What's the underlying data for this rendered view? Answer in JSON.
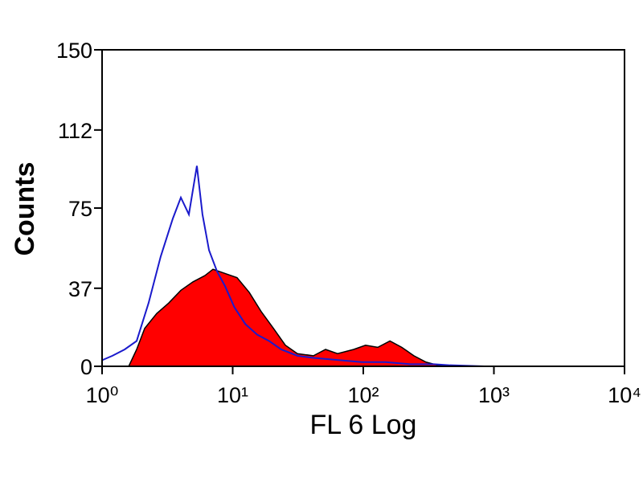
{
  "chart_data": {
    "type": "histogram-overlay",
    "xlabel": "FL 6 Log",
    "ylabel": "Counts",
    "xscale": "log",
    "xlim": [
      1,
      10000
    ],
    "ylim": [
      0,
      150
    ],
    "xticks": [
      {
        "value": 1,
        "label": "10⁰"
      },
      {
        "value": 10,
        "label": "10¹"
      },
      {
        "value": 100,
        "label": "10²"
      },
      {
        "value": 1000,
        "label": "10³"
      },
      {
        "value": 10000,
        "label": "10⁴"
      }
    ],
    "yticks": [
      0,
      37,
      75,
      112,
      150
    ],
    "series": [
      {
        "style": "area",
        "color": "#ff0000",
        "edge": "#000000",
        "x": [
          1.6,
          1.84,
          2.12,
          2.62,
          3.24,
          4.01,
          4.96,
          6.13,
          7.07,
          8.74,
          10.8,
          13.4,
          16.5,
          20.5,
          25.3,
          31.3,
          41.5,
          51.4,
          63.5,
          84.4,
          104,
          129,
          160,
          197,
          244,
          302,
          373,
          462
        ],
        "values": [
          0,
          8,
          18,
          25,
          30,
          36,
          40,
          43,
          46,
          44,
          42,
          35,
          26,
          18,
          10,
          6,
          5,
          8,
          6,
          8,
          10,
          9,
          12,
          9,
          5,
          2,
          0.5,
          0
        ]
      },
      {
        "style": "line",
        "color": "#1a1acc",
        "x": [
          1.01,
          1.2,
          1.49,
          1.84,
          2.27,
          2.81,
          3.48,
          4.01,
          4.62,
          5.32,
          5.87,
          6.59,
          7.59,
          8.74,
          10.3,
          12.5,
          15.4,
          19.0,
          23.5,
          31.3,
          41.5,
          63.5,
          97.2,
          148,
          228,
          348,
          462,
          845
        ],
        "values": [
          3,
          5,
          8,
          12,
          30,
          52,
          70,
          80,
          72,
          95,
          72,
          55,
          45,
          38,
          28,
          20,
          15,
          12,
          8,
          5,
          4,
          3,
          2,
          2,
          1,
          1,
          0.5,
          0
        ]
      }
    ]
  }
}
